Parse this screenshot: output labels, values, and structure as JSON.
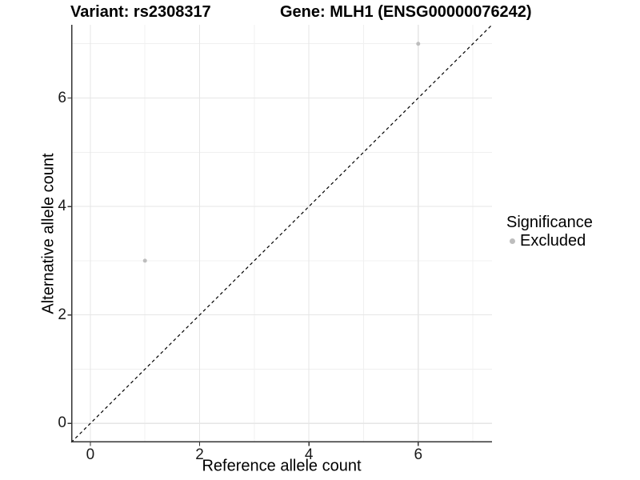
{
  "titles": {
    "variant": "Variant: rs2308317",
    "gene": "Gene: MLH1 (ENSG00000076242)"
  },
  "chart_data": {
    "type": "scatter",
    "title_left": "Variant: rs2308317",
    "title_right": "Gene: MLH1 (ENSG00000076242)",
    "xlabel": "Reference allele count",
    "ylabel": "Alternative allele count",
    "xlim": [
      -0.35,
      7.35
    ],
    "ylim": [
      -0.35,
      7.35
    ],
    "x_ticks": [
      0,
      2,
      4,
      6
    ],
    "y_ticks": [
      0,
      2,
      4,
      6
    ],
    "x_minor": [
      1,
      3,
      5,
      7
    ],
    "y_minor": [
      1,
      3,
      5,
      7
    ],
    "grid": true,
    "legend_position": "right",
    "identity_line": {
      "slope": 1,
      "intercept": 0,
      "style": "dashed",
      "color": "#000000"
    },
    "series": [
      {
        "name": "Excluded",
        "color": "#bdbdbd",
        "points": [
          {
            "x": 1,
            "y": 3
          },
          {
            "x": 6,
            "y": 7
          }
        ]
      }
    ]
  },
  "legend": {
    "title": "Significance",
    "items": [
      {
        "label": "Excluded",
        "color": "#bdbdbd"
      }
    ]
  },
  "style": {
    "grid_major_color": "#e6e6e6",
    "grid_minor_color": "#f0f0f0",
    "axis_line_color": "#333333",
    "point_color": "#bdbdbd"
  }
}
